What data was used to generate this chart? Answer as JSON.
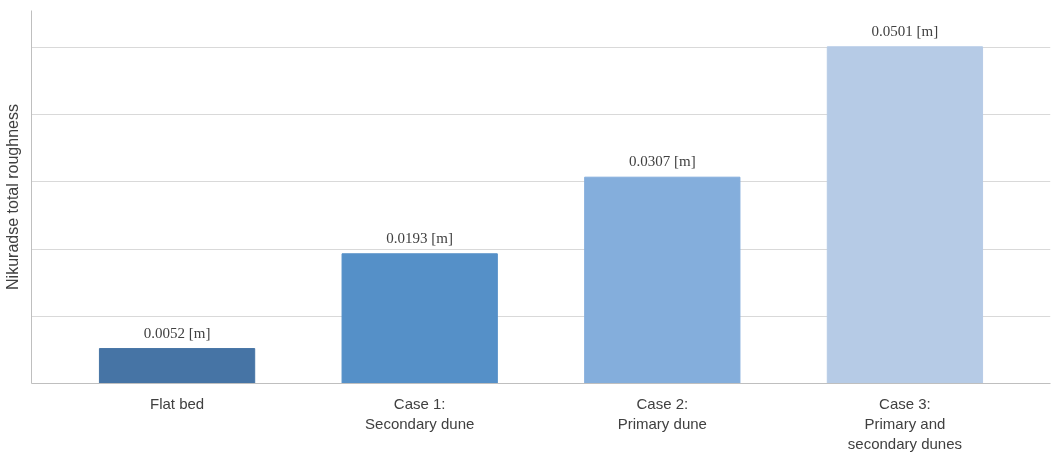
{
  "chart_data": {
    "type": "bar",
    "ylabel": "Nikuradse total roughness",
    "categories": [
      "Flat bed",
      "Case 1:\nSecondary dune",
      "Case 2:\nPrimary dune",
      "Case 3:\nPrimary and\nsecondary dunes"
    ],
    "values": [
      0.0052,
      0.0193,
      0.0307,
      0.0501
    ],
    "colors": [
      "#4674a5",
      "#5590c8",
      "#84aedc",
      "#b6cbe6"
    ],
    "value_labels": [
      "0.0052 [m]",
      "0.0193 [m]",
      "0.0307 [m]",
      "0.0501 [m]"
    ],
    "ylim": [
      0,
      0.0555
    ],
    "yticks": [
      {
        "value": 0,
        "label": null
      },
      {
        "value": 0.01,
        "label": null
      },
      {
        "value": 0.02,
        "label": null
      },
      {
        "value": 0.03,
        "label": null
      },
      {
        "value": 0.04,
        "label": null
      },
      {
        "value": 0.05,
        "label": null
      }
    ],
    "grid": "y",
    "tick_labels": "x"
  }
}
